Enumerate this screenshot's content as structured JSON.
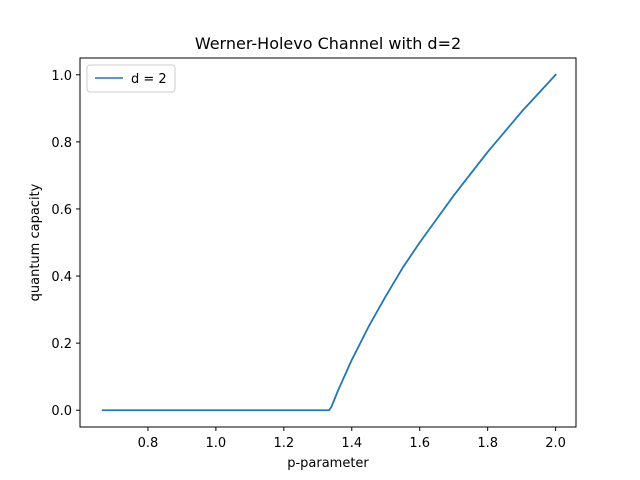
{
  "chart_data": {
    "type": "line",
    "title": "Werner-Holevo Channel with d=2",
    "xlabel": "p-parameter",
    "ylabel": "quantum capacity",
    "xlim": [
      0.6,
      2.06
    ],
    "ylim": [
      -0.05,
      1.05
    ],
    "xticks": [
      0.8,
      1.0,
      1.2,
      1.4,
      1.6,
      1.8,
      2.0
    ],
    "xtick_labels": [
      "0.8",
      "1.0",
      "1.2",
      "1.4",
      "1.6",
      "1.8",
      "2.0"
    ],
    "yticks": [
      0.0,
      0.2,
      0.4,
      0.6,
      0.8,
      1.0
    ],
    "ytick_labels": [
      "0.0",
      "0.2",
      "0.4",
      "0.6",
      "0.8",
      "1.0"
    ],
    "grid": false,
    "legend_position": "upper-left",
    "series": [
      {
        "name": "d = 2",
        "color": "#1f77b4",
        "x": [
          0.667,
          0.8,
          1.0,
          1.2,
          1.3,
          1.32,
          1.333,
          1.34,
          1.36,
          1.4,
          1.45,
          1.5,
          1.55,
          1.6,
          1.65,
          1.7,
          1.75,
          1.8,
          1.85,
          1.9,
          1.95,
          2.0
        ],
        "y": [
          0.0,
          0.0,
          0.0,
          0.0,
          0.0,
          0.0,
          0.0,
          0.01,
          0.06,
          0.15,
          0.25,
          0.34,
          0.425,
          0.5,
          0.57,
          0.64,
          0.705,
          0.77,
          0.83,
          0.89,
          0.945,
          1.0
        ]
      }
    ]
  }
}
